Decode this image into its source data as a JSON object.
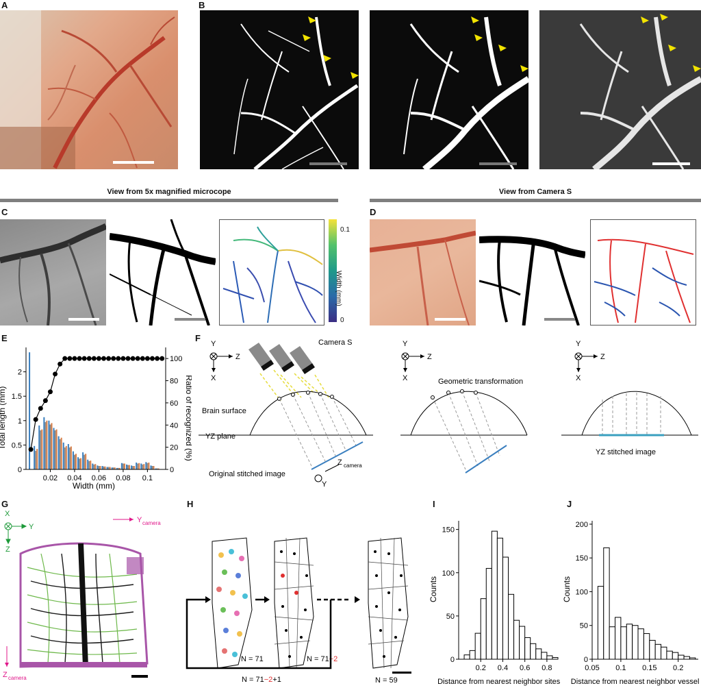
{
  "panels": {
    "A": "A",
    "B": "B",
    "C": "C",
    "D": "D",
    "E": "E",
    "F": "F",
    "G": "G",
    "H": "H",
    "I": "I",
    "J": "J"
  },
  "headers": {
    "left": "View from 5x magnified microcope",
    "right": "View from Camera S"
  },
  "colorbar": {
    "label": "Width (mm)",
    "ticks": [
      "0.1",
      "0"
    ]
  },
  "panelF": {
    "axis_y": "Y",
    "axis_z": "Z",
    "axis_x": "X",
    "camera": "Camera S",
    "brain_surface": "Brain surface",
    "yz_plane": "YZ plane",
    "original": "Original stitched image",
    "z_camera": "Z",
    "z_camera_sub": "camera",
    "y_camera": "Y",
    "y_camera_sub": "camera",
    "geometric": "Geometric transformation",
    "stitched": "YZ stitched image"
  },
  "panelG": {
    "x": "X",
    "y": "Y",
    "z": "Z",
    "y_camera": "Y",
    "y_camera_sub": "camera",
    "z_camera": "Z",
    "z_camera_sub": "camera"
  },
  "panelH": {
    "n1": "N = 71",
    "n2_prefix": "N = 71",
    "n2_red": "−2",
    "n3_prefix": "N = 71",
    "n3_red": "−2",
    "n3_suffix": "+1",
    "n4": "N = 59"
  },
  "chart_data": [
    {
      "panel": "E",
      "type": "bar",
      "xlabel": "Width (mm)",
      "ylabel": "Total length (mm)",
      "y2label": "Ratio of recognized (%)",
      "xlim": [
        0,
        0.115
      ],
      "ylim": [
        0,
        2.5
      ],
      "y2lim": [
        0,
        110
      ],
      "xticks": [
        "0.02",
        "0.04",
        "0.06",
        "0.08",
        "0.1"
      ],
      "yticks": [
        "0",
        "0.5",
        "1",
        "1.5",
        "2"
      ],
      "y2ticks": [
        "0",
        "20",
        "40",
        "60",
        "80",
        "100"
      ],
      "colors": {
        "blue": "#3a7fbf",
        "grey": "#8c8c8c",
        "orange": "#d9804a"
      },
      "x": [
        0.004,
        0.008,
        0.012,
        0.016,
        0.02,
        0.024,
        0.028,
        0.032,
        0.036,
        0.04,
        0.044,
        0.048,
        0.052,
        0.056,
        0.06,
        0.064,
        0.068,
        0.072,
        0.076,
        0.08,
        0.084,
        0.088,
        0.092,
        0.096,
        0.1,
        0.104,
        0.108,
        0.112
      ],
      "series": [
        {
          "color": "blue",
          "values": [
            2.4,
            0.48,
            0.9,
            1.07,
            1.0,
            0.85,
            0.68,
            0.55,
            0.52,
            0.37,
            0.25,
            0.35,
            0.2,
            0.12,
            0.08,
            0.07,
            0.05,
            0.04,
            0.03,
            0.13,
            0.1,
            0.08,
            0.14,
            0.12,
            0.15,
            0.08,
            0.02,
            0.0
          ]
        },
        {
          "color": "grey",
          "values": [
            0.0,
            0.38,
            0.8,
            0.97,
            0.92,
            0.8,
            0.62,
            0.45,
            0.45,
            0.3,
            0.22,
            0.3,
            0.17,
            0.1,
            0.07,
            0.06,
            0.05,
            0.04,
            0.03,
            0.12,
            0.09,
            0.07,
            0.12,
            0.1,
            0.13,
            0.07,
            0.02,
            0.0
          ]
        },
        {
          "color": "orange",
          "values": [
            0.0,
            0.42,
            0.82,
            1.0,
            0.95,
            0.82,
            0.65,
            0.48,
            0.47,
            0.32,
            0.23,
            0.32,
            0.18,
            0.11,
            0.07,
            0.06,
            0.05,
            0.04,
            0.03,
            0.12,
            0.09,
            0.07,
            0.13,
            0.11,
            0.14,
            0.07,
            0.02,
            0.0
          ]
        }
      ],
      "ratio_line": {
        "x": [
          0.004,
          0.008,
          0.012,
          0.016,
          0.02,
          0.024,
          0.028,
          0.032,
          0.036,
          0.04,
          0.044,
          0.048,
          0.052,
          0.056,
          0.06,
          0.064,
          0.068,
          0.072,
          0.076,
          0.08,
          0.084,
          0.088,
          0.092,
          0.096,
          0.1,
          0.104,
          0.108,
          0.112
        ],
        "values": [
          18,
          45,
          55,
          62,
          70,
          86,
          95,
          100,
          100,
          100,
          100,
          100,
          100,
          100,
          100,
          100,
          100,
          100,
          100,
          100,
          100,
          100,
          100,
          100,
          100,
          100,
          100,
          100
        ]
      }
    },
    {
      "panel": "I",
      "type": "bar",
      "xlabel": "Distance from nearest neighbor sites (mm)",
      "ylabel": "Counts",
      "xlim": [
        0,
        0.9
      ],
      "ylim": [
        0,
        160
      ],
      "xticks": [
        "0.2",
        "0.4",
        "0.6",
        "0.8"
      ],
      "xtick_values": [
        0.2,
        0.4,
        0.6,
        0.8
      ],
      "yticks": [
        "0",
        "50",
        "100",
        "150"
      ],
      "ytick_values": [
        0,
        50,
        100,
        150
      ],
      "bin_width": 0.05,
      "x": [
        0.075,
        0.125,
        0.175,
        0.225,
        0.275,
        0.325,
        0.375,
        0.425,
        0.475,
        0.525,
        0.575,
        0.625,
        0.675,
        0.725,
        0.775,
        0.825,
        0.875
      ],
      "values": [
        5,
        10,
        30,
        70,
        105,
        148,
        140,
        118,
        75,
        45,
        38,
        25,
        18,
        12,
        8,
        4,
        2
      ]
    },
    {
      "panel": "J",
      "type": "bar",
      "xlabel": "Distance from nearest neighbor vessel (mm)",
      "ylabel": "Counts",
      "xlim": [
        0.05,
        0.235
      ],
      "ylim": [
        0,
        205
      ],
      "xticks": [
        "0.05",
        "0.1",
        "0.15",
        "0.2"
      ],
      "xtick_values": [
        0.05,
        0.1,
        0.15,
        0.2
      ],
      "yticks": [
        "0",
        "50",
        "100",
        "150",
        "200"
      ],
      "ytick_values": [
        0,
        50,
        100,
        150,
        200
      ],
      "bin_width": 0.01,
      "x": [
        0.065,
        0.075,
        0.085,
        0.095,
        0.105,
        0.115,
        0.125,
        0.135,
        0.145,
        0.155,
        0.165,
        0.175,
        0.185,
        0.195,
        0.205,
        0.215,
        0.225
      ],
      "values": [
        108,
        165,
        48,
        62,
        48,
        52,
        50,
        45,
        38,
        28,
        22,
        18,
        12,
        10,
        6,
        4,
        2
      ]
    }
  ]
}
